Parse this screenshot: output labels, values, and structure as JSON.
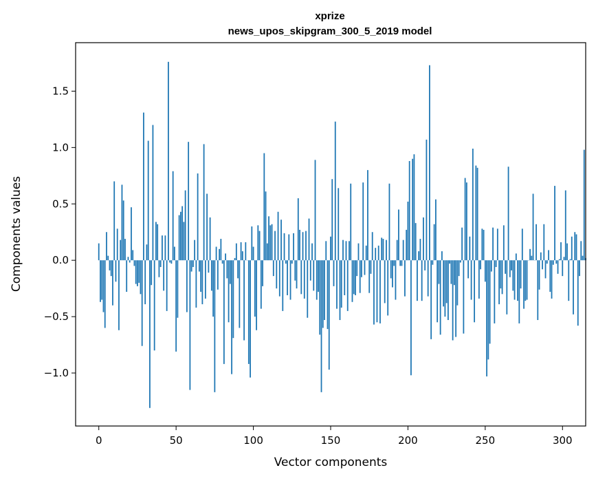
{
  "chart_data": {
    "type": "bar",
    "title_line1": "xprize",
    "title_line2": "news_upos_skipgram_300_5_2019 model",
    "xlabel": "Vector components",
    "ylabel": "Components values",
    "xlim": [
      -15,
      315
    ],
    "ylim": [
      -1.47,
      1.93
    ],
    "xticks": [
      0,
      50,
      100,
      150,
      200,
      250,
      300
    ],
    "xtick_labels": [
      "0",
      "50",
      "100",
      "150",
      "200",
      "250",
      "300"
    ],
    "yticks": [
      -1.0,
      -0.5,
      0.0,
      0.5,
      1.0,
      1.5
    ],
    "ytick_labels": [
      "−1.0",
      "−0.5",
      "0.0",
      "0.5",
      "1.0",
      "1.5"
    ],
    "bar_color": "#1f77b4",
    "grid": false,
    "values": [
      0.15,
      -0.37,
      -0.35,
      -0.46,
      -0.6,
      0.25,
      0.04,
      -0.09,
      -0.14,
      -0.4,
      0.7,
      -0.19,
      0.28,
      -0.62,
      0.18,
      0.67,
      0.53,
      0.19,
      -0.28,
      0.03,
      -0.02,
      0.47,
      0.09,
      -0.05,
      -0.21,
      -0.23,
      -0.2,
      -0.3,
      -0.76,
      1.31,
      -0.39,
      0.14,
      1.06,
      -1.31,
      -0.22,
      1.2,
      -0.8,
      0.34,
      0.32,
      -0.15,
      -0.06,
      0.22,
      -0.27,
      0.22,
      -0.45,
      1.76,
      -0.02,
      -0.03,
      0.79,
      0.12,
      -0.81,
      -0.51,
      0.4,
      0.43,
      0.48,
      0.34,
      0.62,
      -0.46,
      1.05,
      -1.15,
      -0.1,
      -0.06,
      0.18,
      -0.42,
      0.77,
      -0.1,
      -0.28,
      -0.39,
      1.03,
      -0.34,
      0.59,
      -0.11,
      0.38,
      -0.27,
      -0.5,
      -1.17,
      0.12,
      -0.26,
      0.1,
      0.19,
      -0.03,
      -0.92,
      0.06,
      -0.16,
      -0.55,
      -0.21,
      -1.01,
      -0.69,
      0.02,
      0.15,
      -0.16,
      -0.6,
      0.16,
      0.08,
      -0.71,
      0.16,
      0.0,
      -0.92,
      -1.04,
      0.3,
      0.12,
      -0.5,
      -0.62,
      0.31,
      0.26,
      -0.43,
      -0.23,
      0.95,
      0.61,
      0.15,
      0.39,
      0.31,
      0.32,
      -0.14,
      0.26,
      -0.25,
      0.43,
      -0.32,
      0.36,
      -0.45,
      0.24,
      -0.03,
      -0.31,
      0.23,
      -0.35,
      -0.03,
      0.24,
      -0.18,
      -0.25,
      0.55,
      0.27,
      -0.3,
      0.25,
      -0.34,
      0.26,
      -0.51,
      0.37,
      -0.18,
      0.15,
      -0.27,
      0.89,
      -0.35,
      -0.28,
      -0.66,
      -1.17,
      -0.6,
      -0.53,
      0.17,
      -0.61,
      -0.97,
      0.21,
      0.72,
      -0.23,
      1.23,
      -0.43,
      0.64,
      -0.53,
      -0.42,
      0.18,
      -0.31,
      0.17,
      -0.45,
      0.17,
      0.68,
      -0.37,
      -0.3,
      -0.31,
      -0.14,
      0.15,
      -0.29,
      -0.15,
      0.69,
      -0.13,
      0.13,
      0.8,
      -0.29,
      -0.12,
      0.25,
      -0.57,
      0.11,
      -0.55,
      0.13,
      -0.56,
      0.2,
      0.19,
      -0.38,
      0.18,
      -0.49,
      0.68,
      -0.16,
      -0.24,
      -0.05,
      -0.35,
      0.18,
      0.45,
      -0.05,
      -0.05,
      0.18,
      -0.32,
      0.27,
      0.52,
      0.88,
      -1.02,
      0.9,
      0.94,
      0.33,
      -0.36,
      0.08,
      0.19,
      -0.36,
      0.38,
      -0.09,
      1.07,
      -0.32,
      1.73,
      -0.7,
      -0.04,
      0.32,
      0.54,
      -0.55,
      -0.21,
      -0.66,
      0.08,
      -0.41,
      -0.5,
      -0.38,
      -0.53,
      -0.03,
      -0.21,
      -0.71,
      -0.22,
      -0.68,
      -0.4,
      -0.14,
      -0.02,
      0.29,
      -0.65,
      0.73,
      0.69,
      -0.16,
      0.21,
      -0.35,
      0.99,
      -0.55,
      0.84,
      0.82,
      -0.34,
      -0.08,
      0.28,
      0.27,
      -0.19,
      -1.03,
      -0.88,
      -0.74,
      -0.1,
      0.29,
      -0.56,
      -0.06,
      0.28,
      -0.39,
      -0.25,
      -0.3,
      0.31,
      -0.12,
      -0.48,
      0.83,
      -0.15,
      -0.09,
      -0.27,
      -0.35,
      0.06,
      -0.36,
      -0.56,
      -0.25,
      0.28,
      -0.43,
      -0.36,
      -0.35,
      0.0,
      0.1,
      0.04,
      0.59,
      0.0,
      0.32,
      -0.53,
      -0.26,
      0.07,
      -0.08,
      0.32,
      -0.16,
      -0.03,
      0.09,
      -0.28,
      -0.34,
      -0.04,
      0.66,
      -0.03,
      -0.12,
      0.01,
      0.16,
      -0.14,
      0.03,
      0.62,
      0.15,
      -0.36,
      0.01,
      0.21,
      -0.48,
      0.25,
      0.23,
      -0.58,
      -0.14,
      0.17,
      0.04,
      0.98,
      0.02
    ]
  }
}
